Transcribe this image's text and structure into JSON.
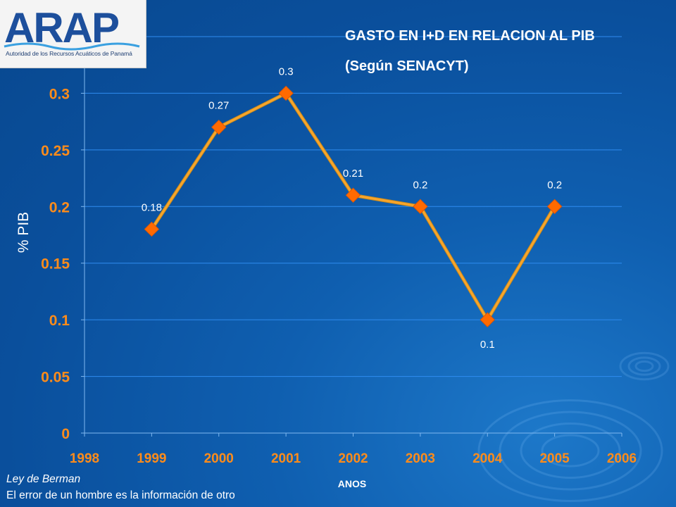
{
  "logo": {
    "wordmark": "ARAP",
    "subtitle": "Autoridad de los Recursos Acuáticos de Panamá"
  },
  "footer": {
    "law": "Ley de Berman",
    "quote": "El error de un hombre es la información de otro"
  },
  "colors": {
    "background": "#0a4f9c",
    "series": "#ff6a00",
    "line": "#f7a52c",
    "tick_labels": "#ff8c1a",
    "gridlines": "#2f8cf0"
  },
  "chart_data": {
    "type": "line",
    "title": "GASTO EN I+D EN RELACION AL PIB",
    "subtitle": "(Según SENACYT)",
    "xlabel": "ANOS",
    "ylabel": "% PIB",
    "x_ticks": [
      "1998",
      "1999",
      "2000",
      "2001",
      "2002",
      "2003",
      "2004",
      "2005",
      "2006"
    ],
    "y_ticks": [
      "0",
      "0.05",
      "0.1",
      "0.15",
      "0.2",
      "0.25",
      "0.3",
      "0.35"
    ],
    "xlim": [
      1998,
      2006
    ],
    "ylim": [
      0,
      0.35
    ],
    "grid": "horizontal",
    "marker": "diamond",
    "series": [
      {
        "x": [
          1999,
          2000,
          2001,
          2002,
          2003,
          2004,
          2005
        ],
        "values": [
          0.18,
          0.27,
          0.3,
          0.21,
          0.2,
          0.1,
          0.2
        ],
        "labels": [
          "0.18",
          "0.27",
          "0.3",
          "0.21",
          "0.2",
          "0.1",
          "0.2"
        ]
      }
    ]
  }
}
